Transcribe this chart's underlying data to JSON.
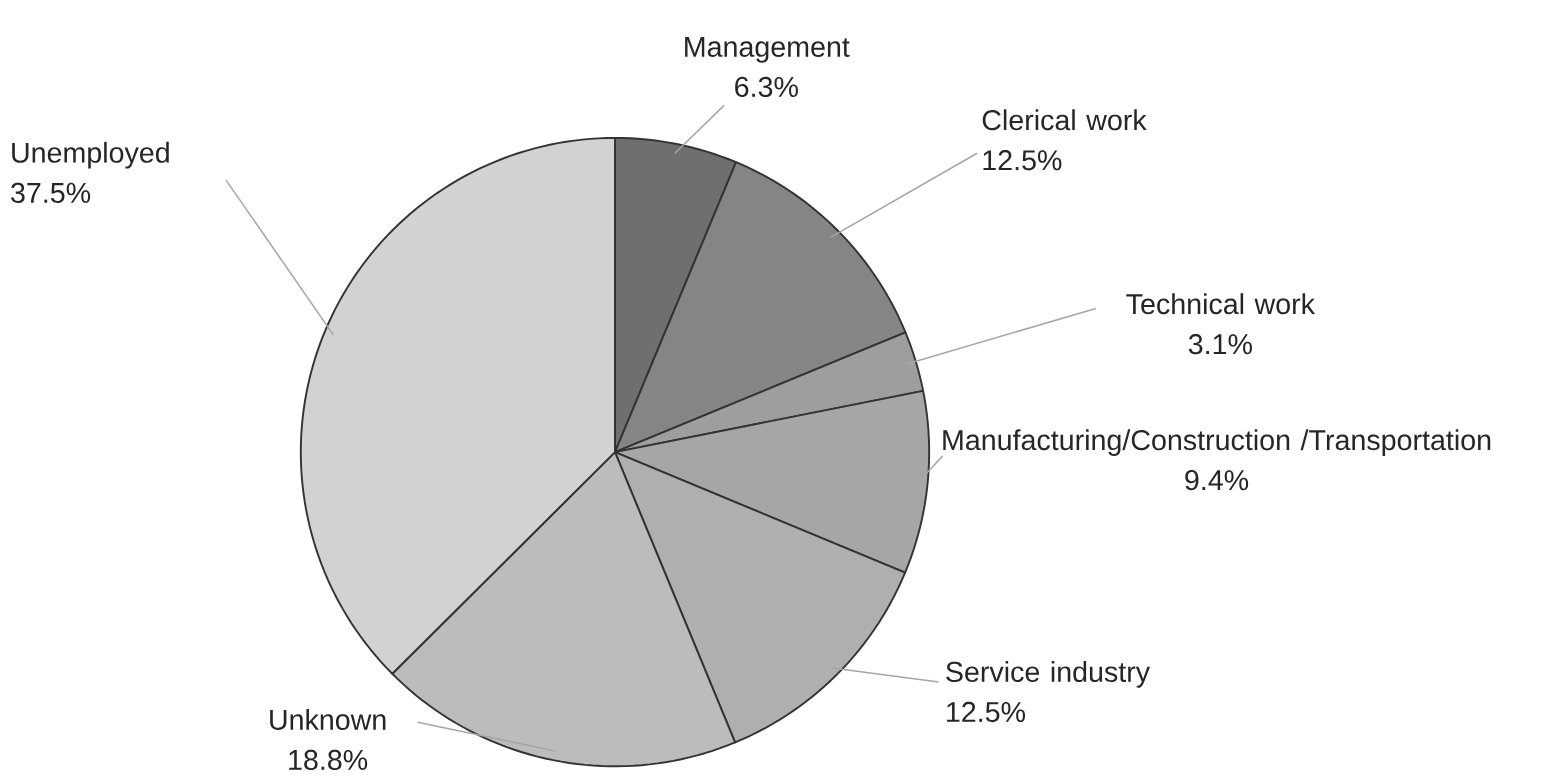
{
  "chart_data": {
    "type": "pie",
    "categories": [
      "Management",
      "Clerical work",
      "Technical work",
      "Manufacturing/Construction /Transportation",
      "Service industry",
      "Unknown",
      "Unemployed"
    ],
    "values": [
      6.3,
      12.5,
      3.1,
      9.4,
      12.5,
      18.8,
      37.5
    ],
    "value_labels": [
      "6.3%",
      "12.5%",
      "3.1%",
      "9.4%",
      "12.5%",
      "18.8%",
      "37.5%"
    ],
    "colors": [
      "#6f6f6f",
      "#858585",
      "#9e9e9e",
      "#a6a6a6",
      "#afafaf",
      "#bcbcbc",
      "#d2d2d2"
    ]
  }
}
